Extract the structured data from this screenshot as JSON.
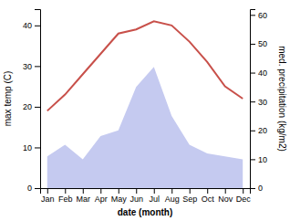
{
  "chart_data": {
    "type": "line",
    "categories": [
      "Jan",
      "Feb",
      "Mar",
      "Apr",
      "May",
      "Jun",
      "Jul",
      "Aug",
      "Sep",
      "Oct",
      "Nov",
      "Dec"
    ],
    "xlabel": "date (month)",
    "ylabel": "max temp (C)",
    "y2label": "med. precipitation (kg/m2)",
    "ylim": [
      0,
      44
    ],
    "yticks": [
      0,
      10,
      20,
      30,
      40
    ],
    "y2lim": [
      0,
      62
    ],
    "y2ticks": [
      0,
      10,
      20,
      30,
      40,
      50,
      60
    ],
    "grid": false,
    "series": [
      {
        "type": "area",
        "axis": "y2",
        "color": "#c5caf0",
        "values": [
          11,
          15,
          10,
          18,
          20,
          35,
          42,
          25,
          15,
          12,
          11,
          10
        ]
      },
      {
        "type": "line",
        "color": "#c8504a",
        "values": [
          19,
          23,
          28,
          33,
          38,
          39,
          41,
          40,
          36,
          31,
          25,
          22
        ]
      }
    ]
  }
}
